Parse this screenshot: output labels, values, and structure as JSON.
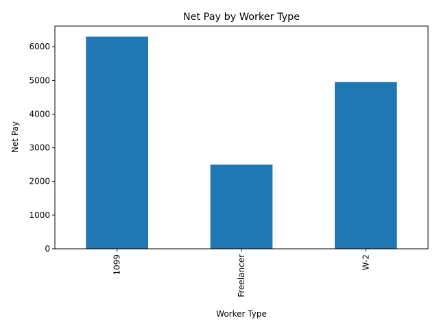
{
  "chart_data": {
    "type": "bar",
    "title": "Net Pay by Worker Type",
    "xlabel": "Worker Type",
    "ylabel": "Net Pay",
    "categories": [
      "1099",
      "Freelancer",
      "W-2"
    ],
    "values": [
      6300,
      2500,
      4950
    ],
    "ylim": [
      0,
      6615
    ],
    "yticks": [
      0,
      1000,
      2000,
      3000,
      4000,
      5000,
      6000
    ],
    "bar_color": "#1f77b4",
    "grid": false,
    "legend": "none"
  }
}
